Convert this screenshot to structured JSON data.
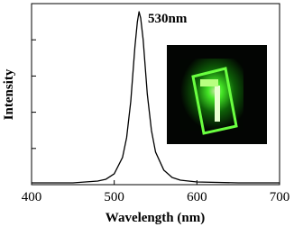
{
  "chart_data": {
    "type": "line",
    "annotation": "530nm",
    "x_label": "Wavelength (nm)",
    "y_label": "Intensity",
    "x": [
      400,
      450,
      480,
      490,
      500,
      510,
      515,
      520,
      525,
      528,
      530,
      532,
      535,
      540,
      545,
      550,
      560,
      570,
      580,
      600,
      650,
      700
    ],
    "series": [
      {
        "color": "#000000",
        "values": [
          0.01,
          0.01,
          0.02,
          0.03,
          0.06,
          0.15,
          0.26,
          0.46,
          0.76,
          0.9,
          0.955,
          0.92,
          0.8,
          0.5,
          0.3,
          0.18,
          0.08,
          0.04,
          0.025,
          0.015,
          0.01,
          0.01
        ]
      }
    ],
    "xlim": [
      400,
      700
    ],
    "xticks": [
      400,
      500,
      600,
      700
    ],
    "ylim": [
      0,
      1
    ],
    "yticks": [
      0,
      0.2,
      0.4,
      0.6,
      0.8,
      1
    ]
  }
}
